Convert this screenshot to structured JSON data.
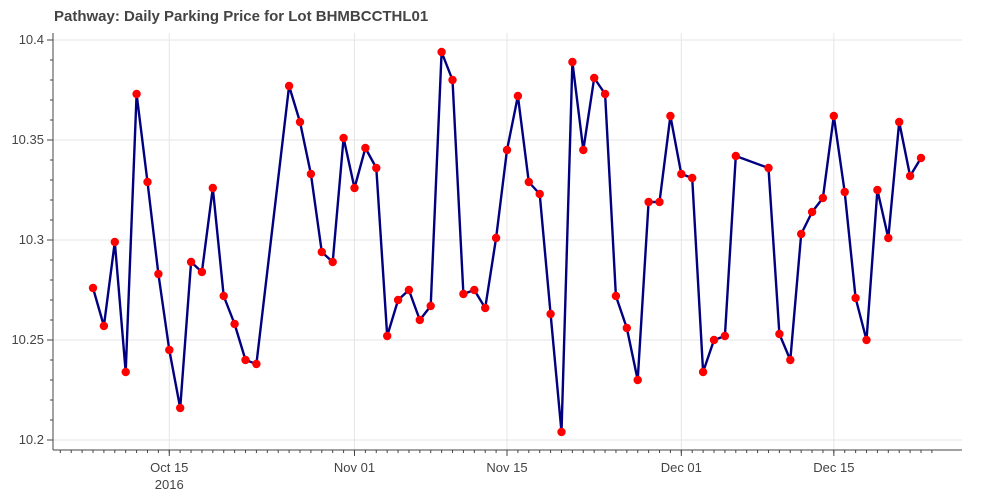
{
  "chart_data": {
    "type": "line",
    "title": "Pathway: Daily Parking Price for Lot BHMBCCTHL01",
    "xlabel": "",
    "ylabel": "",
    "ylim": [
      10.2,
      10.4
    ],
    "xlim": [
      "2016-10-04",
      "2016-12-23"
    ],
    "x_ticks": [
      {
        "date": "2016-10-15",
        "label": "Oct 15",
        "sublabel": "2016"
      },
      {
        "date": "2016-11-01",
        "label": "Nov 01",
        "sublabel": ""
      },
      {
        "date": "2016-11-15",
        "label": "Nov 15",
        "sublabel": ""
      },
      {
        "date": "2016-12-01",
        "label": "Dec 01",
        "sublabel": ""
      },
      {
        "date": "2016-12-15",
        "label": "Dec 15",
        "sublabel": ""
      }
    ],
    "y_ticks": [
      {
        "value": 10.2,
        "label": "10.2"
      },
      {
        "value": 10.25,
        "label": "10.25"
      },
      {
        "value": 10.3,
        "label": "10.3"
      },
      {
        "value": 10.35,
        "label": "10.35"
      },
      {
        "value": 10.4,
        "label": "10.4"
      }
    ],
    "grid": true,
    "series": [
      {
        "line_color": "#000080",
        "marker_color": "#ff0000",
        "points": [
          [
            "2016-10-08",
            10.276
          ],
          [
            "2016-10-09",
            10.257
          ],
          [
            "2016-10-10",
            10.299
          ],
          [
            "2016-10-11",
            10.234
          ],
          [
            "2016-10-12",
            10.373
          ],
          [
            "2016-10-13",
            10.329
          ],
          [
            "2016-10-14",
            10.283
          ],
          [
            "2016-10-15",
            10.245
          ],
          [
            "2016-10-16",
            10.216
          ],
          [
            "2016-10-17",
            10.289
          ],
          [
            "2016-10-18",
            10.284
          ],
          [
            "2016-10-19",
            10.326
          ],
          [
            "2016-10-20",
            10.272
          ],
          [
            "2016-10-21",
            10.258
          ],
          [
            "2016-10-22",
            10.24
          ],
          [
            "2016-10-23",
            10.238
          ],
          [
            "2016-10-26",
            10.377
          ],
          [
            "2016-10-27",
            10.359
          ],
          [
            "2016-10-28",
            10.333
          ],
          [
            "2016-10-29",
            10.294
          ],
          [
            "2016-10-30",
            10.289
          ],
          [
            "2016-10-31",
            10.351
          ],
          [
            "2016-11-01",
            10.326
          ],
          [
            "2016-11-02",
            10.346
          ],
          [
            "2016-11-03",
            10.336
          ],
          [
            "2016-11-04",
            10.252
          ],
          [
            "2016-11-05",
            10.27
          ],
          [
            "2016-11-06",
            10.275
          ],
          [
            "2016-11-07",
            10.26
          ],
          [
            "2016-11-08",
            10.267
          ],
          [
            "2016-11-09",
            10.394
          ],
          [
            "2016-11-10",
            10.38
          ],
          [
            "2016-11-11",
            10.273
          ],
          [
            "2016-11-12",
            10.275
          ],
          [
            "2016-11-13",
            10.266
          ],
          [
            "2016-11-14",
            10.301
          ],
          [
            "2016-11-15",
            10.345
          ],
          [
            "2016-11-16",
            10.372
          ],
          [
            "2016-11-17",
            10.329
          ],
          [
            "2016-11-18",
            10.323
          ],
          [
            "2016-11-19",
            10.263
          ],
          [
            "2016-11-20",
            10.204
          ],
          [
            "2016-11-21",
            10.389
          ],
          [
            "2016-11-22",
            10.345
          ],
          [
            "2016-11-23",
            10.381
          ],
          [
            "2016-11-24",
            10.373
          ],
          [
            "2016-11-25",
            10.272
          ],
          [
            "2016-11-26",
            10.256
          ],
          [
            "2016-11-27",
            10.23
          ],
          [
            "2016-11-28",
            10.319
          ],
          [
            "2016-11-29",
            10.319
          ],
          [
            "2016-11-30",
            10.362
          ],
          [
            "2016-12-01",
            10.333
          ],
          [
            "2016-12-02",
            10.331
          ],
          [
            "2016-12-03",
            10.234
          ],
          [
            "2016-12-04",
            10.25
          ],
          [
            "2016-12-05",
            10.252
          ],
          [
            "2016-12-06",
            10.342
          ],
          [
            "2016-12-09",
            10.336
          ],
          [
            "2016-12-10",
            10.253
          ],
          [
            "2016-12-11",
            10.24
          ],
          [
            "2016-12-12",
            10.303
          ],
          [
            "2016-12-13",
            10.314
          ],
          [
            "2016-12-14",
            10.321
          ],
          [
            "2016-12-15",
            10.362
          ],
          [
            "2016-12-16",
            10.324
          ],
          [
            "2016-12-17",
            10.271
          ],
          [
            "2016-12-18",
            10.25
          ],
          [
            "2016-12-19",
            10.325
          ],
          [
            "2016-12-20",
            10.301
          ],
          [
            "2016-12-21",
            10.359
          ],
          [
            "2016-12-22",
            10.332
          ],
          [
            "2016-12-23",
            10.341
          ]
        ]
      }
    ]
  }
}
